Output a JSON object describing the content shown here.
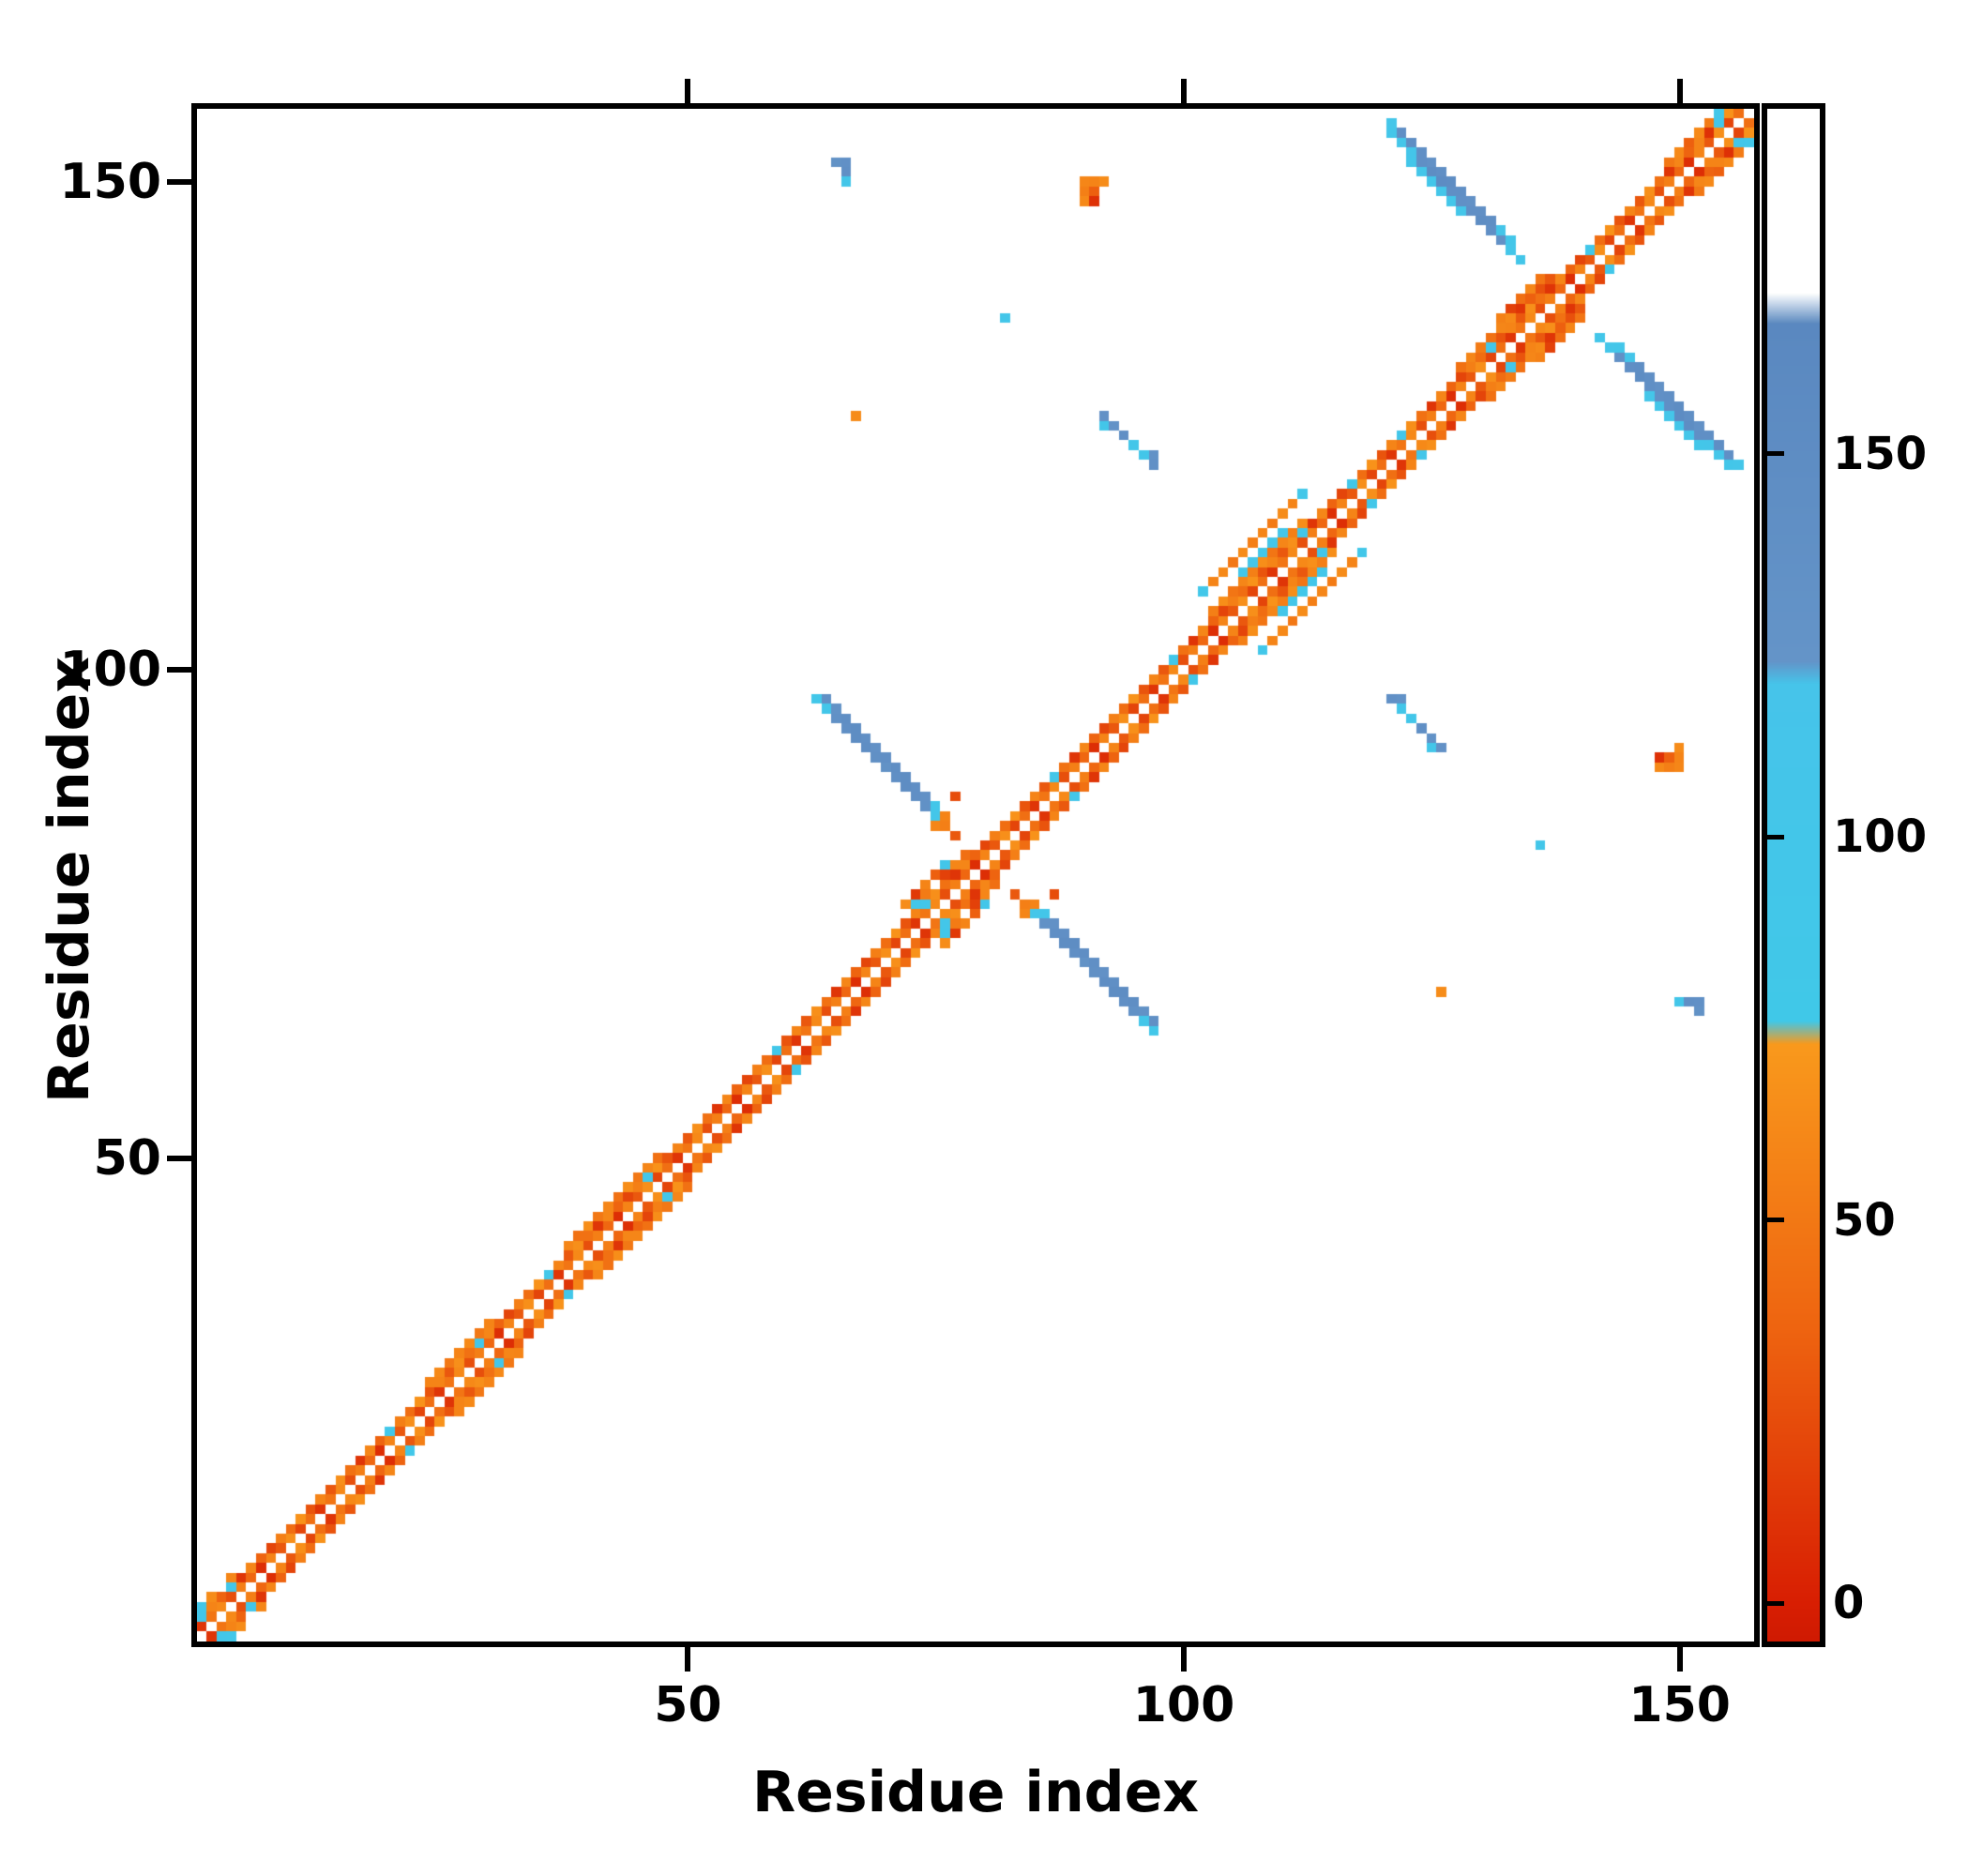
{
  "chart_data": {
    "type": "heatmap",
    "title": "",
    "xlabel": "Residue index",
    "ylabel": "Residue index",
    "n_residues": 157,
    "x_range": [
      1,
      157
    ],
    "y_range": [
      1,
      157
    ],
    "x_ticks": [
      50,
      100,
      150
    ],
    "y_ticks": [
      50,
      100,
      150
    ],
    "grid": false,
    "symmetric": true,
    "diagonal_gap": true,
    "colorbar": {
      "position": "right",
      "ticks": [
        0,
        50,
        100,
        150
      ],
      "range": [
        -5,
        195
      ],
      "stops": [
        {
          "v": -5,
          "color": "#cf1a02"
        },
        {
          "v": 0,
          "color": "#d81e02"
        },
        {
          "v": 36,
          "color": "#ee6410"
        },
        {
          "v": 73,
          "color": "#f9991c"
        },
        {
          "v": 76,
          "color": "#40c8e8"
        },
        {
          "v": 120,
          "color": "#46c4ea"
        },
        {
          "v": 123,
          "color": "#6494c8"
        },
        {
          "v": 167,
          "color": "#5a88c0"
        },
        {
          "v": 171,
          "color": "#ffffff"
        },
        {
          "v": 195,
          "color": "#ffffff"
        }
      ]
    },
    "segments": [
      {
        "kind": "diag",
        "offset": 1,
        "i0": 1,
        "i1": 156,
        "values": [
          12,
          48,
          62,
          25,
          55,
          38,
          8,
          58,
          30,
          66,
          20,
          44
        ]
      },
      {
        "kind": "diag",
        "offset": 2,
        "i0": 1,
        "i1": 155,
        "values": [
          58,
          30,
          66,
          45,
          12,
          60,
          36,
          20,
          55,
          42,
          68,
          28
        ]
      },
      {
        "kind": "diag",
        "offset": 3,
        "i0": 24,
        "i1": 30,
        "values": [
          58,
          62,
          50
        ]
      },
      {
        "kind": "diag",
        "offset": 3,
        "i0": 38,
        "i1": 47,
        "values": [
          60,
          45,
          65,
          50
        ]
      },
      {
        "kind": "diag",
        "offset": 3,
        "i0": 103,
        "i1": 112,
        "values": [
          55,
          65,
          48,
          60
        ]
      },
      {
        "kind": "diag",
        "offset": 3,
        "i0": 128,
        "i1": 133,
        "values": [
          45,
          60,
          52
        ]
      },
      {
        "kind": "diag",
        "offset": 3,
        "i0": 149,
        "i1": 154,
        "values": [
          50,
          62,
          40,
          58
        ]
      },
      {
        "kind": "diag",
        "offset": 6,
        "i0": 102,
        "i1": 112,
        "values": [
          92,
          58,
          62,
          50,
          64,
          55,
          60,
          52,
          64,
          58,
          92
        ]
      },
      {
        "kind": "diag",
        "offset": 4,
        "i0": 106,
        "i1": 110,
        "values": [
          96,
          102,
          92,
          96,
          102
        ]
      },
      {
        "kind": "anti",
        "sum": 160,
        "i0": 63,
        "i1": 76,
        "values": [
          92,
          98,
          135,
          142,
          150,
          145,
          138,
          132,
          140,
          148,
          142,
          135,
          98,
          92
        ]
      },
      {
        "kind": "anti",
        "sum": 161,
        "i0": 64,
        "i1": 75,
        "values": [
          138,
          132,
          144,
          150,
          140,
          134,
          140,
          146,
          150,
          140,
          134,
          96
        ]
      },
      {
        "kind": "anti",
        "sum": 276,
        "i0": 121,
        "i1": 134,
        "values": [
          96,
          102,
          108,
          142,
          148,
          152,
          142,
          136,
          142,
          148,
          140,
          134,
          102,
          96
        ]
      },
      {
        "kind": "anti",
        "sum": 277,
        "i0": 121,
        "i1": 133,
        "values": [
          102,
          140,
          146,
          140,
          134,
          142,
          148,
          142,
          134,
          142,
          146,
          104,
          98
        ]
      },
      {
        "kind": "anti",
        "sum": 275,
        "i0": 123,
        "i1": 128,
        "values": [
          96,
          102,
          96,
          102,
          96,
          102
        ]
      }
    ],
    "cells": [
      [
        4,
        6,
        95
      ],
      [
        20,
        22,
        92
      ],
      [
        29,
        31,
        100
      ],
      [
        36,
        38,
        90
      ],
      [
        46,
        48,
        96
      ],
      [
        59,
        61,
        88
      ],
      [
        74,
        76,
        100
      ],
      [
        87,
        89,
        95
      ],
      [
        99,
        101,
        92
      ],
      [
        112,
        114,
        96
      ],
      [
        117,
        119,
        90
      ],
      [
        122,
        124,
        100
      ],
      [
        131,
        133,
        95
      ],
      [
        141,
        143,
        92
      ],
      [
        154,
        156,
        98
      ],
      [
        1,
        3,
        94
      ],
      [
        2,
        4,
        58
      ],
      [
        1,
        4,
        90
      ],
      [
        3,
        5,
        36
      ],
      [
        2,
        5,
        64
      ],
      [
        4,
        7,
        60
      ],
      [
        154,
        157,
        90
      ],
      [
        152,
        154,
        58
      ],
      [
        153,
        156,
        52
      ],
      [
        152,
        155,
        62
      ],
      [
        151,
        154,
        34
      ],
      [
        153,
        155,
        10
      ],
      [
        73,
        77,
        14
      ],
      [
        74,
        78,
        58
      ],
      [
        75,
        79,
        34
      ],
      [
        76,
        80,
        96
      ],
      [
        74,
        77,
        52
      ],
      [
        76,
        79,
        18
      ],
      [
        77,
        80,
        60
      ],
      [
        72,
        76,
        64
      ],
      [
        78,
        81,
        44
      ],
      [
        73,
        76,
        92
      ],
      [
        77,
        87,
        24
      ],
      [
        76,
        85,
        58
      ],
      [
        75,
        84,
        60
      ],
      [
        77,
        83,
        30
      ],
      [
        76,
        84,
        55
      ],
      [
        133,
        137,
        18
      ],
      [
        134,
        138,
        44
      ],
      [
        135,
        139,
        60
      ],
      [
        134,
        137,
        12
      ],
      [
        135,
        138,
        34
      ],
      [
        132,
        136,
        56
      ],
      [
        136,
        139,
        26
      ],
      [
        133,
        136,
        62
      ],
      [
        136,
        140,
        48
      ],
      [
        137,
        140,
        30
      ],
      [
        65,
        152,
        132
      ],
      [
        66,
        152,
        136
      ],
      [
        66,
        151,
        142
      ],
      [
        66,
        150,
        96
      ],
      [
        90,
        149,
        55
      ],
      [
        91,
        149,
        34
      ],
      [
        90,
        148,
        62
      ],
      [
        91,
        148,
        10
      ],
      [
        92,
        150,
        64
      ],
      [
        91,
        150,
        58
      ],
      [
        90,
        150,
        60
      ],
      [
        82,
        136,
        96
      ],
      [
        67,
        126,
        64
      ],
      [
        92,
        126,
        134
      ],
      [
        93,
        125,
        130
      ],
      [
        94,
        124,
        140
      ],
      [
        95,
        123,
        96
      ],
      [
        92,
        125,
        100
      ],
      [
        97,
        121,
        136
      ],
      [
        97,
        122,
        130
      ],
      [
        96,
        122,
        100
      ]
    ]
  }
}
